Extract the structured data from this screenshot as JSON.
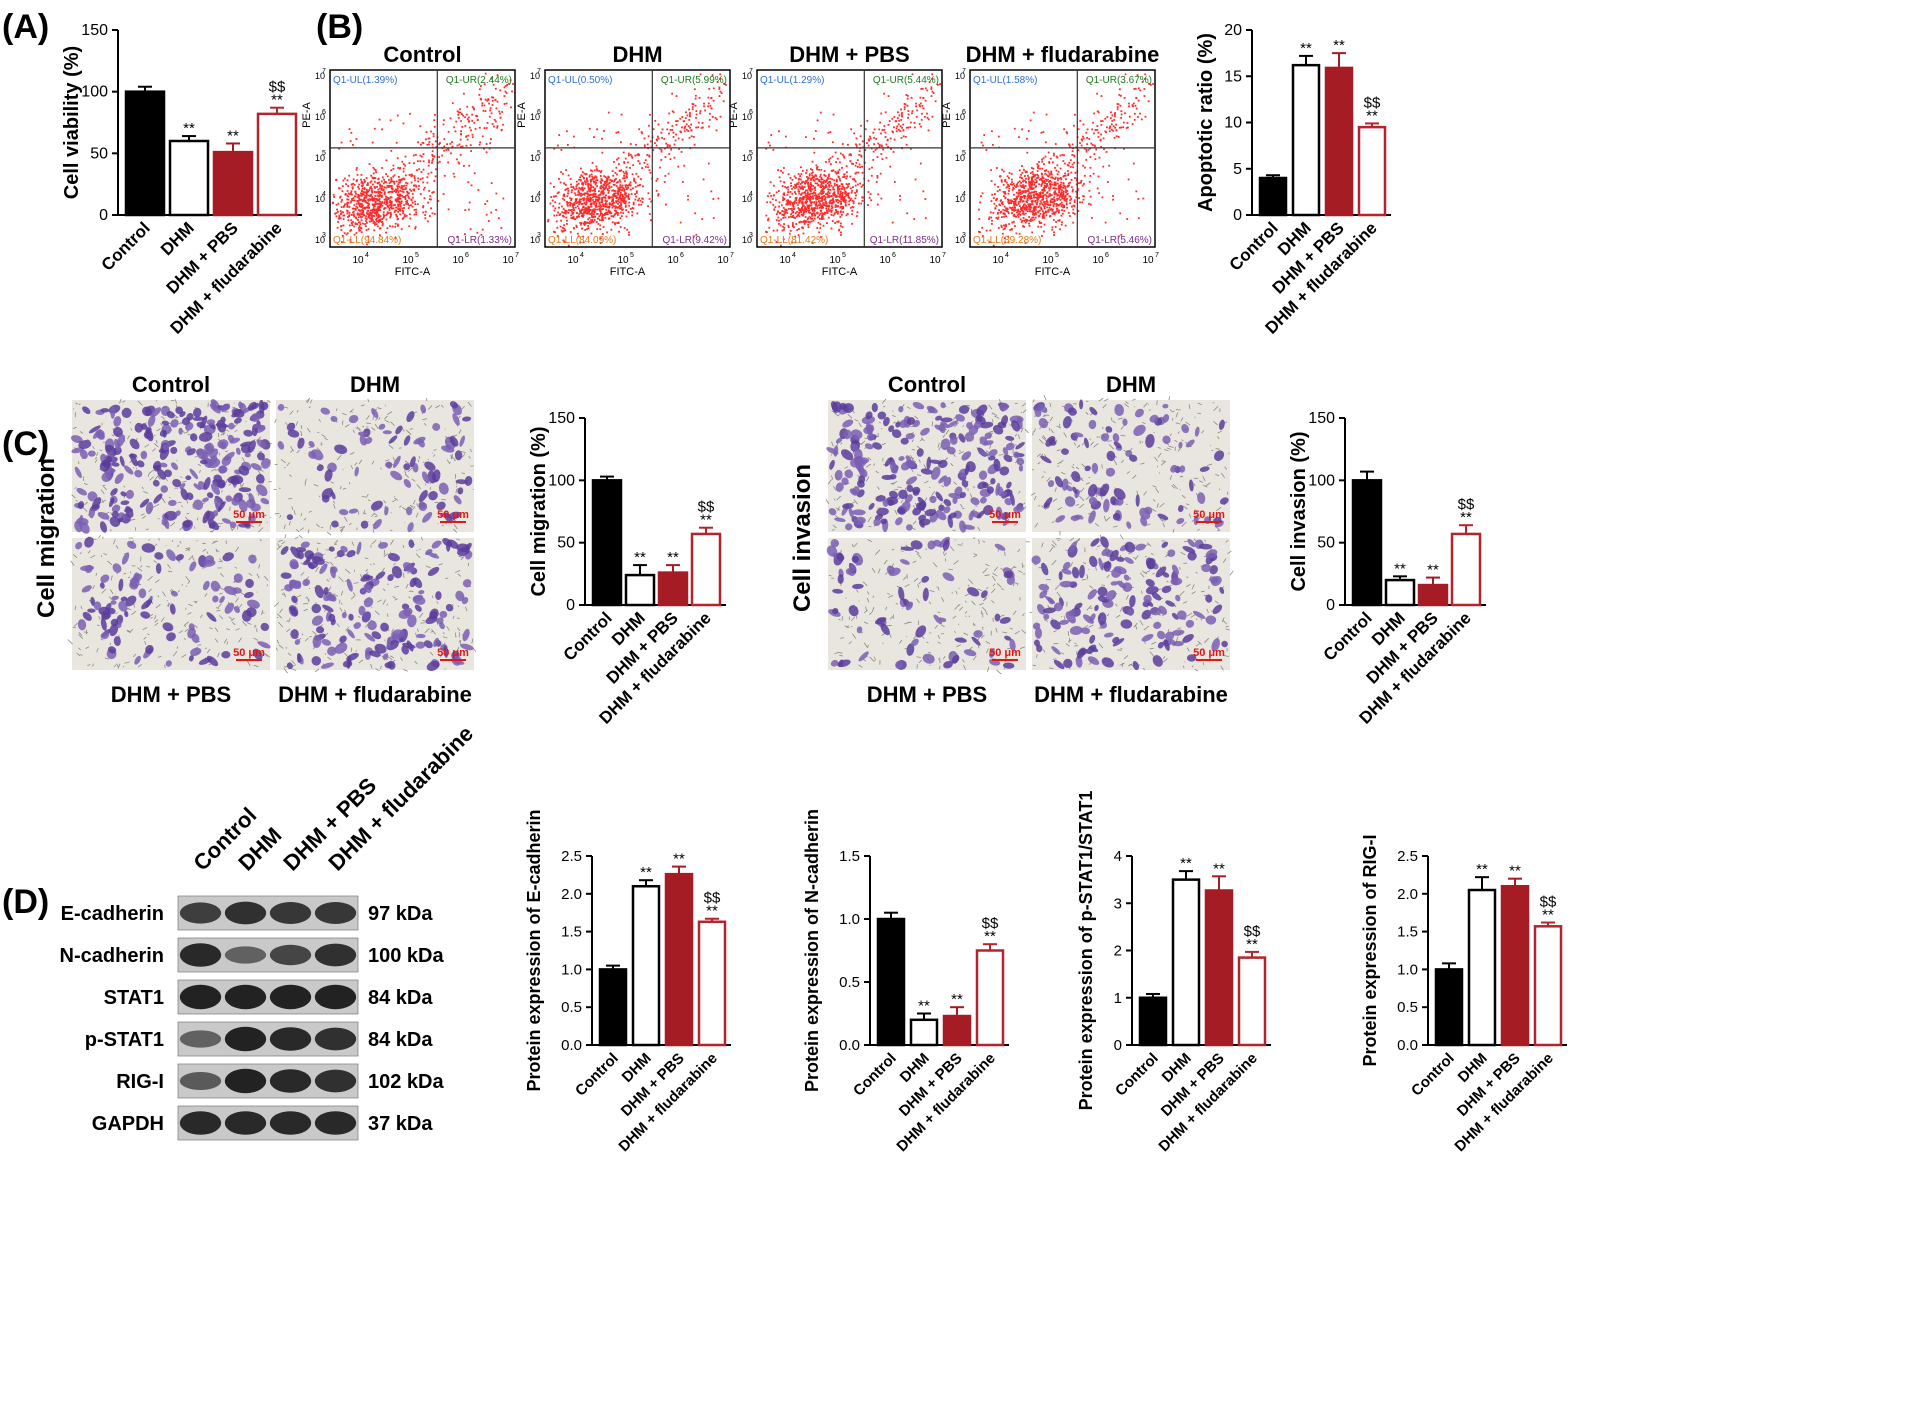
{
  "panel_labels": [
    "(A)",
    "(B)",
    "(C)",
    "(D)"
  ],
  "colors": {
    "black": "#000000",
    "red": "#a51c24",
    "white": "#ffffff",
    "open_red": "#b3252d",
    "dot_red": "#ff2a2a"
  },
  "flow": {
    "plots": [
      {
        "title": "Control",
        "quadrants": [
          "Q1-UL(1.39%)",
          "Q1-UR(2.44%)",
          "Q1-LL(94.84%)",
          "Q1-LR(1.33%)"
        ]
      },
      {
        "title": "DHM",
        "quadrants": [
          "Q1-UL(0.50%)",
          "Q1-UR(5.99%)",
          "Q1-LL(84.09%)",
          "Q1-LR(9.42%)"
        ]
      },
      {
        "title": "DHM + PBS",
        "quadrants": [
          "Q1-UL(1.29%)",
          "Q1-UR(5.44%)",
          "Q1-LL(81.42%)",
          "Q1-LR(11.85%)"
        ]
      },
      {
        "title": "DHM + fludarabine",
        "quadrants": [
          "Q1-UL(1.58%)",
          "Q1-UR(3.67%)",
          "Q1-LL(89.28%)",
          "Q1-LR(5.46%)"
        ]
      }
    ],
    "x_axis_label": "FITC-A",
    "y_axis_label": "PE-A",
    "ticks": [
      "10",
      "3",
      "4",
      "5",
      "6",
      "7"
    ]
  },
  "micro": {
    "migration": {
      "row_label": "Cell migration",
      "top_labels": [
        "Control",
        "DHM"
      ],
      "bottom_labels": [
        "DHM + PBS",
        "DHM + fludarabine"
      ],
      "scale": "50 μm"
    },
    "invasion": {
      "row_label": "Cell invasion",
      "top_labels": [
        "Control",
        "DHM"
      ],
      "bottom_labels": [
        "DHM + PBS",
        "DHM + fludarabine"
      ],
      "scale": "50 μm"
    }
  },
  "blot": {
    "lanes": [
      "Control",
      "DHM",
      "DHM + PBS",
      "DHM + fludarabine"
    ],
    "proteins": [
      {
        "name": "E-cadherin",
        "kda": "97 kDa"
      },
      {
        "name": "N-cadherin",
        "kda": "100 kDa"
      },
      {
        "name": "STAT1",
        "kda": "84 kDa"
      },
      {
        "name": "p-STAT1",
        "kda": "84 kDa"
      },
      {
        "name": "RIG-I",
        "kda": "102 kDa"
      },
      {
        "name": "GAPDH",
        "kda": "37 kDa"
      }
    ],
    "intensity": [
      [
        0.7,
        0.8,
        0.75,
        0.75
      ],
      [
        0.85,
        0.45,
        0.65,
        0.8
      ],
      [
        0.9,
        0.9,
        0.9,
        0.9
      ],
      [
        0.45,
        0.9,
        0.85,
        0.8
      ],
      [
        0.5,
        0.9,
        0.85,
        0.8
      ],
      [
        0.85,
        0.85,
        0.85,
        0.85
      ]
    ]
  },
  "chart_data": [
    {
      "type": "bar",
      "id": "viability",
      "ylabel": "Cell viability (%)",
      "ylim": [
        0,
        150
      ],
      "yticks": [
        "0",
        "50",
        "100",
        "150"
      ],
      "categories": [
        "Control",
        "DHM",
        "DHM + PBS",
        "DHM + fludarabine"
      ],
      "values": [
        100,
        60,
        51,
        82
      ],
      "errors": [
        4,
        4,
        7,
        5
      ],
      "annotations": [
        "",
        "**",
        "**",
        "$$\n**"
      ]
    },
    {
      "type": "bar",
      "id": "apoptosis",
      "ylabel": "Apoptotic ratio (%)",
      "ylim": [
        0,
        20
      ],
      "yticks": [
        "0",
        "5",
        "10",
        "15",
        "20"
      ],
      "categories": [
        "Control",
        "DHM",
        "DHM + PBS",
        "DHM + fludarabine"
      ],
      "values": [
        4,
        16.2,
        15.9,
        9.5
      ],
      "errors": [
        0.3,
        1.0,
        1.6,
        0.4
      ],
      "annotations": [
        "",
        "**",
        "**",
        "$$\n**"
      ]
    },
    {
      "type": "bar",
      "id": "migration",
      "ylabel": "Cell migration (%)",
      "ylim": [
        0,
        150
      ],
      "yticks": [
        "0",
        "50",
        "100",
        "150"
      ],
      "categories": [
        "Control",
        "DHM",
        "DHM + PBS",
        "DHM + fludarabine"
      ],
      "values": [
        100,
        24,
        26,
        57
      ],
      "errors": [
        3,
        8,
        6,
        5
      ],
      "annotations": [
        "",
        "**",
        "**",
        "$$\n**"
      ]
    },
    {
      "type": "bar",
      "id": "invasion",
      "ylabel": "Cell invasion (%)",
      "ylim": [
        0,
        150
      ],
      "yticks": [
        "0",
        "50",
        "100",
        "150"
      ],
      "categories": [
        "Control",
        "DHM",
        "DHM + PBS",
        "DHM + fludarabine"
      ],
      "values": [
        100,
        20,
        16,
        57
      ],
      "errors": [
        7,
        3,
        6,
        7
      ],
      "annotations": [
        "",
        "**",
        "**",
        "$$\n**"
      ]
    },
    {
      "type": "bar",
      "id": "ecad",
      "ylabel": "Protein expression of E-cadherin",
      "ylim": [
        0,
        2.5
      ],
      "yticks": [
        "0.0",
        "0.5",
        "1.0",
        "1.5",
        "2.0",
        "2.5"
      ],
      "categories": [
        "Control",
        "DHM",
        "DHM + PBS",
        "DHM + fludarabine"
      ],
      "values": [
        1.0,
        2.1,
        2.26,
        1.63
      ],
      "errors": [
        0.05,
        0.08,
        0.1,
        0.04
      ],
      "annotations": [
        "",
        "**",
        "**",
        "$$\n**"
      ]
    },
    {
      "type": "bar",
      "id": "ncad",
      "ylabel": "Protein expression of N-cadherin",
      "ylim": [
        0,
        1.5
      ],
      "yticks": [
        "0.0",
        "0.5",
        "1.0",
        "1.5"
      ],
      "categories": [
        "Control",
        "DHM",
        "DHM + PBS",
        "DHM + fludarabine"
      ],
      "values": [
        1.0,
        0.2,
        0.23,
        0.75
      ],
      "errors": [
        0.05,
        0.05,
        0.07,
        0.05
      ],
      "annotations": [
        "",
        "**",
        "**",
        "$$\n**"
      ]
    },
    {
      "type": "bar",
      "id": "pstat",
      "ylabel": "Protein expression of p-STAT1/STAT1",
      "ylim": [
        0,
        4
      ],
      "yticks": [
        "0",
        "1",
        "2",
        "3",
        "4"
      ],
      "categories": [
        "Control",
        "DHM",
        "DHM + PBS",
        "DHM + fludarabine"
      ],
      "values": [
        1.0,
        3.5,
        3.27,
        1.85
      ],
      "errors": [
        0.08,
        0.18,
        0.3,
        0.12
      ],
      "annotations": [
        "",
        "**",
        "**",
        "$$\n**"
      ]
    },
    {
      "type": "bar",
      "id": "rig",
      "ylabel": "Protein expression of RIG-I",
      "ylim": [
        0,
        2.5
      ],
      "yticks": [
        "0.0",
        "0.5",
        "1.0",
        "1.5",
        "2.0",
        "2.5"
      ],
      "categories": [
        "Control",
        "DHM",
        "DHM + PBS",
        "DHM + fludarabine"
      ],
      "values": [
        1.0,
        2.05,
        2.1,
        1.57
      ],
      "errors": [
        0.08,
        0.17,
        0.1,
        0.05
      ],
      "annotations": [
        "",
        "**",
        "**",
        "$$\n**"
      ]
    }
  ]
}
